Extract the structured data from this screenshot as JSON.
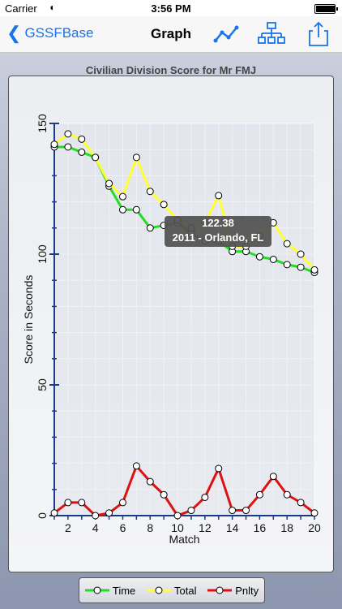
{
  "status_bar": {
    "carrier": "Carrier",
    "time": "3:56 PM",
    "battery_level": 0.95
  },
  "nav": {
    "back_label": "GSSFBase",
    "title": "Graph",
    "icons": [
      "line-graph-icon",
      "hierarchy-icon",
      "share-icon"
    ]
  },
  "tooltip": {
    "value": "122.38",
    "label": "2011 - Orlando, FL"
  },
  "colors": {
    "time": "#22dd22",
    "total": "#ffff33",
    "penalty": "#dd1111",
    "axis": "#1a3a8a",
    "grid": "#ffffff"
  },
  "chart_data": {
    "type": "line",
    "title": "Civilian Division Score for Mr FMJ",
    "xlabel": "Match",
    "ylabel": "Score in Seconds",
    "xlim": [
      1,
      20
    ],
    "ylim": [
      0,
      150
    ],
    "x_ticks": [
      "2",
      "4",
      "6",
      "8",
      "10",
      "12",
      "14",
      "16",
      "18",
      "20"
    ],
    "y_ticks": [
      "0",
      "50",
      "100",
      "150"
    ],
    "x": [
      1,
      2,
      3,
      4,
      5,
      6,
      7,
      8,
      9,
      10,
      11,
      12,
      13,
      14,
      15,
      16,
      17,
      18,
      19,
      20
    ],
    "series": [
      {
        "name": "Time",
        "color": "#22dd22",
        "values": [
          141,
          141,
          139,
          137,
          126,
          117,
          117,
          110,
          111,
          112,
          108,
          105,
          105,
          101,
          101,
          99,
          98,
          96,
          95,
          93
        ]
      },
      {
        "name": "Total",
        "color": "#ffff33",
        "values": [
          142,
          146,
          144,
          137,
          127,
          122,
          137,
          124,
          119,
          113,
          110,
          112,
          122.38,
          103,
          103,
          107,
          112,
          104,
          100,
          94
        ]
      },
      {
        "name": "Pnlty",
        "color": "#dd1111",
        "values": [
          1,
          5,
          5,
          0,
          1,
          5,
          19,
          13,
          8,
          0,
          2,
          7,
          18,
          2,
          2,
          8,
          15,
          8,
          5,
          1
        ]
      }
    ]
  }
}
